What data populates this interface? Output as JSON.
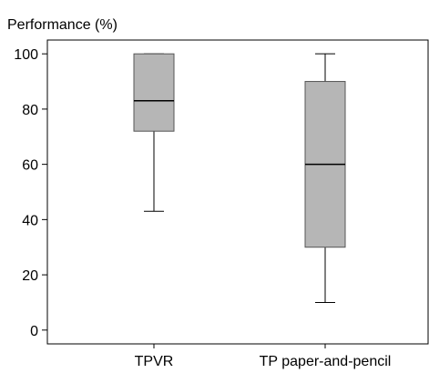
{
  "chart_data": {
    "type": "box",
    "ylabel": "Performance (%)",
    "xlabel": "",
    "ylim": [
      -5,
      105
    ],
    "yticks": [
      0,
      20,
      40,
      60,
      80,
      100
    ],
    "grid": false,
    "categories": [
      "TPVR",
      "TP paper-and-pencil"
    ],
    "boxes": [
      {
        "category": "TPVR",
        "min": 43,
        "q1": 72,
        "median": 83,
        "q3": 100,
        "max": 100
      },
      {
        "category": "TP paper-and-pencil",
        "min": 10,
        "q1": 30,
        "median": 60,
        "q3": 90,
        "max": 100
      }
    ],
    "colors": {
      "box_fill": "#b6b6b6",
      "box_stroke": "#555555",
      "whisker": "#000000",
      "median": "#000000",
      "frame": "#000000"
    }
  }
}
